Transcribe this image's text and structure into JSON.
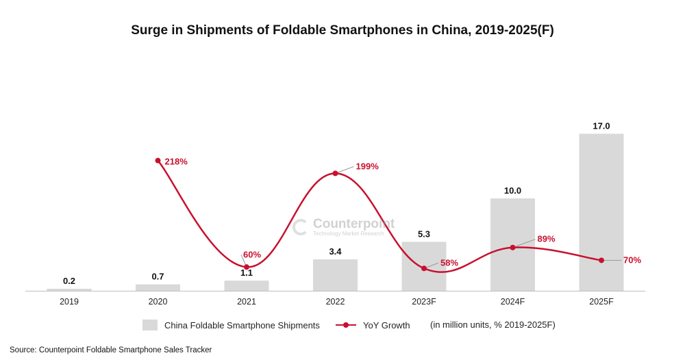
{
  "title": "Surge in Shipments of Foldable Smartphones in China, 2019-2025(F)",
  "legend": {
    "bar_label": "China Foldable Smartphone Shipments",
    "line_label": "YoY Growth",
    "units_note": "(in million units, % 2019-2025F)"
  },
  "source": "Source: Counterpoint Foldable Smartphone Sales Tracker",
  "watermark": {
    "name": "Counterpoint",
    "tagline": "Technology Market Research"
  },
  "colors": {
    "bar": "#d9d9d9",
    "line": "#c8102e",
    "axis": "#bfbfbf"
  },
  "chart_data": {
    "type": "bar",
    "categories": [
      "2019",
      "2020",
      "2021",
      "2022",
      "2023F",
      "2024F",
      "2025F"
    ],
    "series": [
      {
        "name": "China Foldable Smartphone Shipments",
        "type": "bar",
        "values": [
          0.2,
          0.7,
          1.1,
          3.4,
          5.3,
          10.0,
          17.0
        ],
        "labels": [
          "0.2",
          "0.7",
          "1.1",
          "3.4",
          "5.3",
          "10.0",
          "17.0"
        ]
      },
      {
        "name": "YoY Growth",
        "type": "line",
        "values": [
          null,
          218,
          60,
          199,
          58,
          89,
          70
        ],
        "labels": [
          "",
          "218%",
          "60%",
          "199%",
          "58%",
          "89%",
          "70%"
        ]
      }
    ],
    "legend_position": "bottom",
    "grid": false
  }
}
